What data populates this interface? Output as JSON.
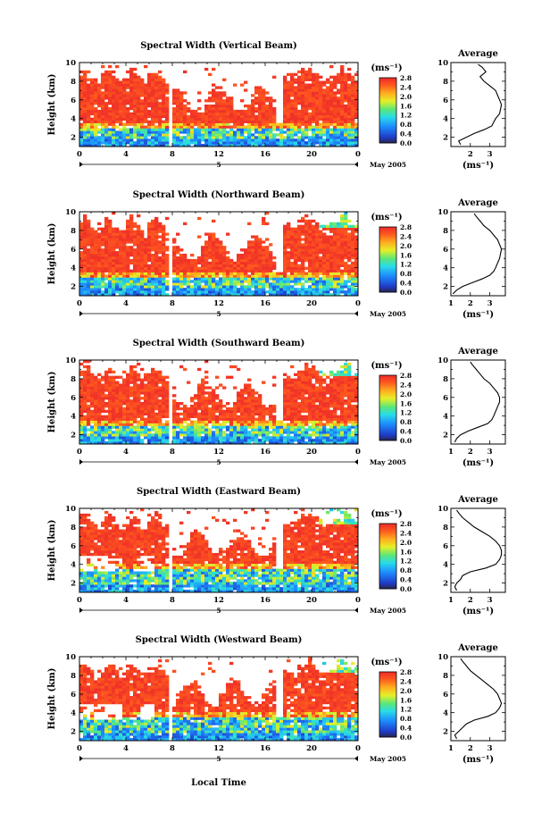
{
  "figure": {
    "xlabel": "Local Time",
    "date_label": "May 2005",
    "day_label": "5",
    "avg_title": "Average",
    "unit_label": "(ms⁻¹)",
    "cb_ticks": [
      "0.0",
      "0.4",
      "0.8",
      "1.2",
      "1.6",
      "2.0",
      "2.4",
      "2.8"
    ]
  },
  "chart_data": [
    {
      "type": "heatmap",
      "title": "Spectral Width (Vertical Beam)",
      "xlabel": "Local Time",
      "ylabel": "Height (km)",
      "xlim": [
        0,
        24
      ],
      "ylim": [
        1,
        10
      ],
      "x_ticks": [
        "0",
        "4",
        "8",
        "12",
        "16",
        "20",
        "0"
      ],
      "y_ticks": [
        "2",
        "4",
        "6",
        "8",
        "10"
      ],
      "colorbar": {
        "label": "(ms⁻¹)",
        "range": [
          0,
          2.8
        ]
      },
      "gap_hours": [
        7.6,
        7.9
      ],
      "data_gap_after_hour": 17.0,
      "profile": {
        "title": "Average",
        "xlabel": "(ms⁻¹)",
        "x_ticks": [
          "2",
          "3"
        ],
        "xlim": [
          1,
          3.8
        ],
        "heights": [
          1.2,
          1.6,
          2.0,
          2.4,
          2.8,
          3.2,
          3.6,
          4.0,
          4.5,
          5.0,
          5.5,
          6.0,
          6.5,
          7.0,
          7.5,
          8.0,
          8.5,
          9.0,
          9.5,
          9.8
        ],
        "values": [
          1.5,
          1.4,
          1.8,
          2.2,
          2.7,
          3.1,
          3.2,
          3.3,
          3.5,
          3.55,
          3.6,
          3.5,
          3.4,
          3.3,
          3.0,
          2.7,
          2.5,
          2.8,
          2.6,
          2.4
        ]
      }
    },
    {
      "type": "heatmap",
      "title": "Spectral Width (Northward Beam)",
      "xlabel": "Local Time",
      "ylabel": "Height (km)",
      "xlim": [
        0,
        24
      ],
      "ylim": [
        1,
        10
      ],
      "x_ticks": [
        "0",
        "4",
        "8",
        "12",
        "16",
        "20",
        "0"
      ],
      "y_ticks": [
        "2",
        "4",
        "6",
        "8",
        "10"
      ],
      "colorbar": {
        "label": "(ms⁻¹)",
        "range": [
          0,
          2.8
        ]
      },
      "gap_hours": [
        7.6,
        7.9
      ],
      "data_gap_after_hour": 17.0,
      "profile": {
        "title": "Average",
        "xlabel": "(ms⁻¹)",
        "x_ticks": [
          "1",
          "2",
          "3"
        ],
        "xlim": [
          1,
          3.8
        ],
        "heights": [
          1.2,
          1.6,
          2.0,
          2.4,
          2.8,
          3.2,
          3.6,
          4.0,
          4.5,
          5.0,
          5.5,
          6.0,
          6.5,
          7.0,
          7.5,
          8.0,
          8.5,
          9.0,
          9.5,
          9.8
        ],
        "values": [
          1.1,
          1.3,
          1.6,
          2.1,
          2.6,
          3.0,
          3.2,
          3.3,
          3.4,
          3.5,
          3.55,
          3.6,
          3.5,
          3.4,
          3.2,
          3.0,
          2.7,
          2.5,
          2.3,
          2.2
        ]
      }
    },
    {
      "type": "heatmap",
      "title": "Spectral Width (Southward Beam)",
      "xlabel": "Local Time",
      "ylabel": "Height (km)",
      "xlim": [
        0,
        24
      ],
      "ylim": [
        1,
        10
      ],
      "x_ticks": [
        "0",
        "4",
        "8",
        "12",
        "16",
        "20",
        "0"
      ],
      "y_ticks": [
        "2",
        "4",
        "6",
        "8",
        "10"
      ],
      "colorbar": {
        "label": "(ms⁻¹)",
        "range": [
          0,
          2.8
        ]
      },
      "gap_hours": [
        7.6,
        7.9
      ],
      "data_gap_after_hour": 17.0,
      "profile": {
        "title": "Average",
        "xlabel": "(ms⁻¹)",
        "x_ticks": [
          "1",
          "2",
          "3"
        ],
        "xlim": [
          1,
          3.8
        ],
        "heights": [
          1.2,
          1.6,
          2.0,
          2.4,
          2.8,
          3.2,
          3.6,
          4.0,
          4.5,
          5.0,
          5.5,
          6.0,
          6.5,
          7.0,
          7.5,
          8.0,
          8.5,
          9.0,
          9.5,
          9.8
        ],
        "values": [
          1.2,
          1.3,
          1.5,
          1.9,
          2.4,
          2.9,
          3.1,
          3.2,
          3.3,
          3.4,
          3.5,
          3.5,
          3.4,
          3.2,
          3.0,
          2.7,
          2.5,
          2.3,
          2.1,
          2.0
        ]
      }
    },
    {
      "type": "heatmap",
      "title": "Spectral Width (Eastward Beam)",
      "xlabel": "Local Time",
      "ylabel": "Height (km)",
      "xlim": [
        0,
        24
      ],
      "ylim": [
        1,
        10
      ],
      "x_ticks": [
        "0",
        "4",
        "8",
        "12",
        "16",
        "20",
        "0"
      ],
      "y_ticks": [
        "2",
        "4",
        "6",
        "8",
        "10"
      ],
      "colorbar": {
        "label": "(ms⁻¹)",
        "range": [
          0,
          2.8
        ]
      },
      "gap_hours": [
        7.6,
        7.9
      ],
      "data_gap_after_hour": 17.0,
      "profile": {
        "title": "Average",
        "xlabel": "(ms⁻¹)",
        "x_ticks": [
          "1",
          "2",
          "3"
        ],
        "xlim": [
          1,
          3.8
        ],
        "heights": [
          1.2,
          1.6,
          2.0,
          2.4,
          2.8,
          3.2,
          3.6,
          4.0,
          4.5,
          5.0,
          5.5,
          6.0,
          6.5,
          7.0,
          7.5,
          8.0,
          8.5,
          9.0,
          9.5,
          9.8
        ],
        "values": [
          1.3,
          1.2,
          1.3,
          1.5,
          1.6,
          2.0,
          2.8,
          3.3,
          3.5,
          3.6,
          3.6,
          3.5,
          3.3,
          3.0,
          2.6,
          2.2,
          1.9,
          1.6,
          1.4,
          1.3
        ]
      }
    },
    {
      "type": "heatmap",
      "title": "Spectral Width (Westward Beam)",
      "xlabel": "Local Time",
      "ylabel": "Height (km)",
      "xlim": [
        0,
        24
      ],
      "ylim": [
        1,
        10
      ],
      "x_ticks": [
        "0",
        "4",
        "8",
        "12",
        "16",
        "20",
        "0"
      ],
      "y_ticks": [
        "2",
        "4",
        "6",
        "8",
        "10"
      ],
      "colorbar": {
        "label": "(ms⁻¹)",
        "range": [
          0,
          2.8
        ]
      },
      "gap_hours": [
        7.6,
        7.9
      ],
      "data_gap_after_hour": 17.0,
      "profile": {
        "title": "Average",
        "xlabel": "(ms⁻¹)",
        "x_ticks": [
          "1",
          "2",
          "3"
        ],
        "xlim": [
          1,
          3.8
        ],
        "heights": [
          1.2,
          1.6,
          2.0,
          2.4,
          2.8,
          3.2,
          3.6,
          4.0,
          4.5,
          5.0,
          5.5,
          6.0,
          6.5,
          7.0,
          7.5,
          8.0,
          8.5,
          9.0,
          9.5,
          9.8
        ],
        "values": [
          1.3,
          1.2,
          1.4,
          1.6,
          1.8,
          2.2,
          2.9,
          3.3,
          3.5,
          3.6,
          3.5,
          3.4,
          3.2,
          2.9,
          2.6,
          2.3,
          2.0,
          1.8,
          1.6,
          1.5
        ]
      }
    }
  ]
}
